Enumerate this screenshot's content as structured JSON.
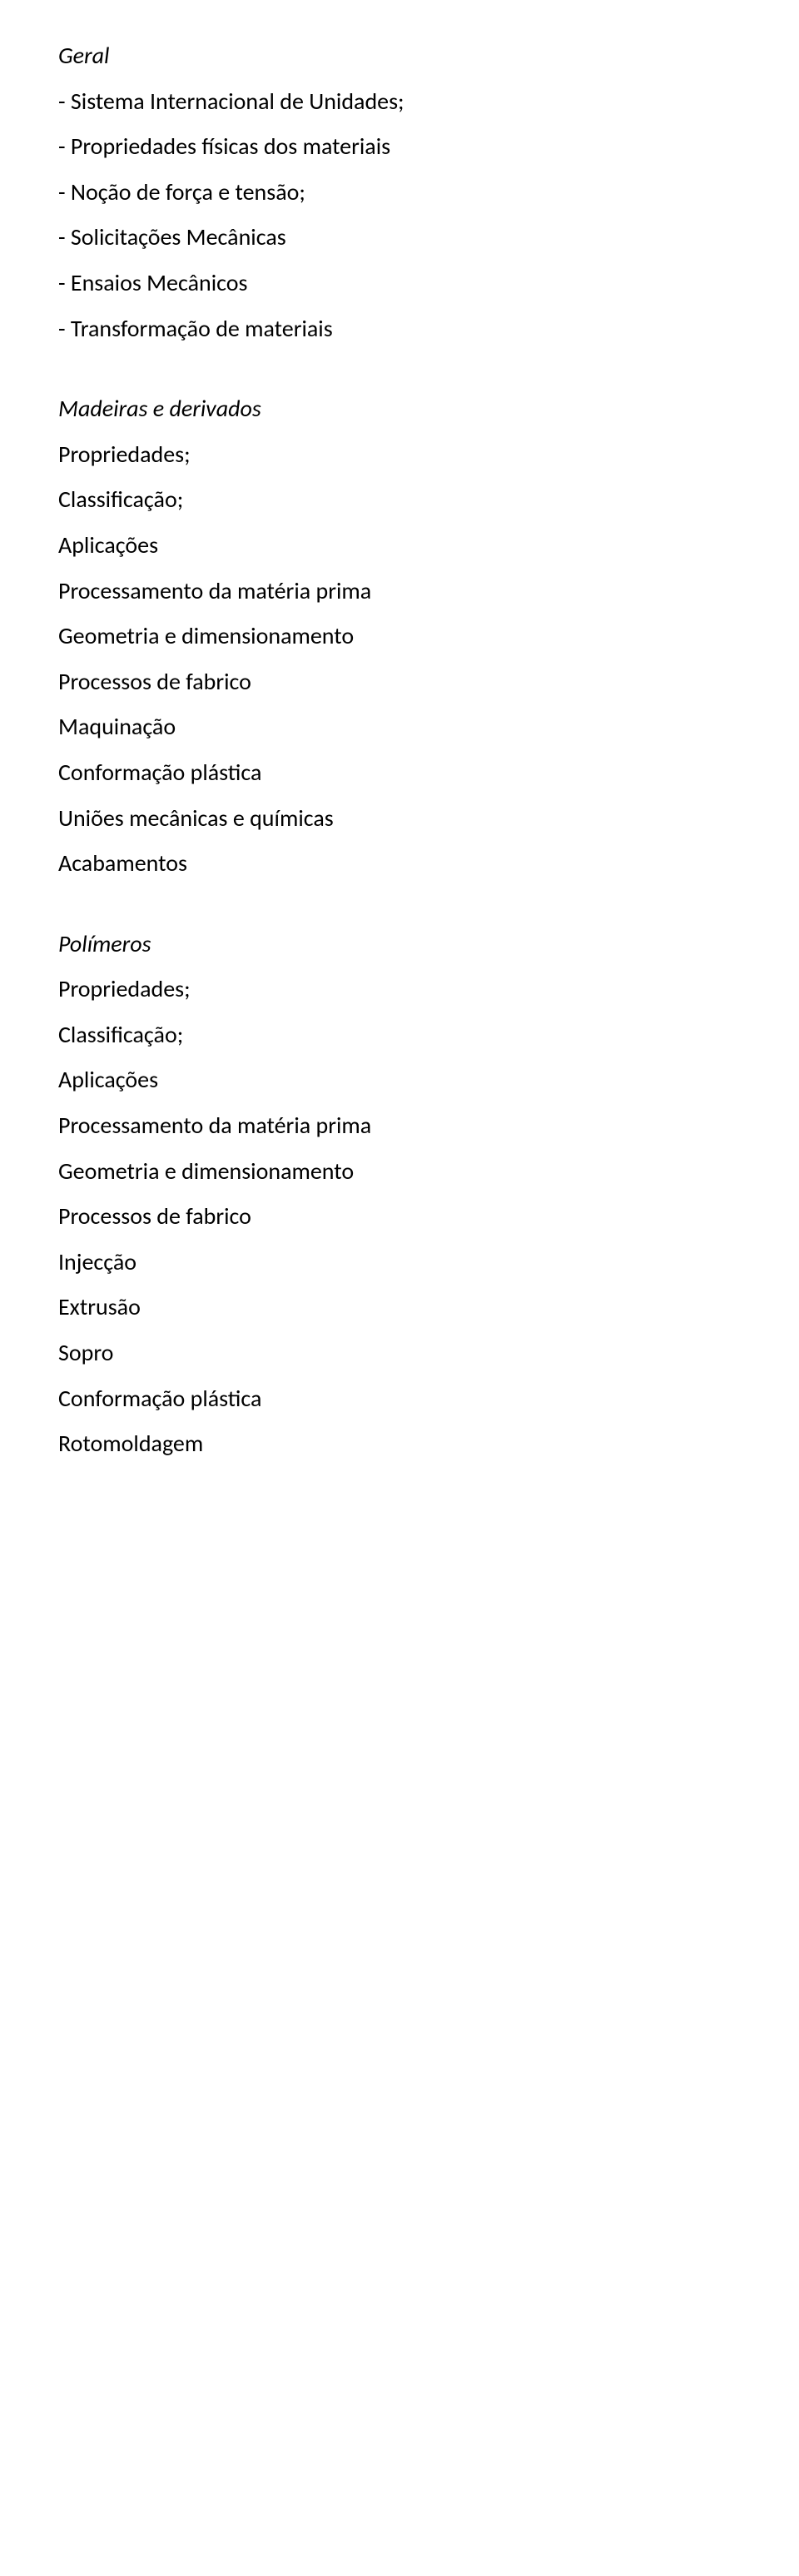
{
  "geral": {
    "heading": "Geral",
    "items": [
      "- Sistema Internacional de Unidades;",
      "- Propriedades físicas dos materiais",
      "- Noção de força e tensão;",
      "- Solicitações Mecânicas",
      "- Ensaios Mecânicos",
      "- Transformação de materiais"
    ]
  },
  "madeiras": {
    "heading": "Madeiras e derivados",
    "lvl1": [
      "Propriedades;",
      "Classificação;",
      "Aplicações",
      "Processamento da matéria prima",
      "Geometria e dimensionamento",
      "Processos de fabrico"
    ],
    "lvl2": [
      "Maquinação",
      "Conformação plástica",
      "Uniões mecânicas e químicas",
      "Acabamentos"
    ]
  },
  "polimeros": {
    "heading": "Polímeros",
    "lvl1": [
      "Propriedades;",
      "Classificação;",
      "Aplicações",
      "Processamento da matéria prima",
      "Geometria e dimensionamento",
      "Processos de fabrico"
    ],
    "lvl2": [
      "Injecção",
      "Extrusão",
      "Sopro",
      "Conformação plástica",
      "Rotomoldagem"
    ]
  }
}
